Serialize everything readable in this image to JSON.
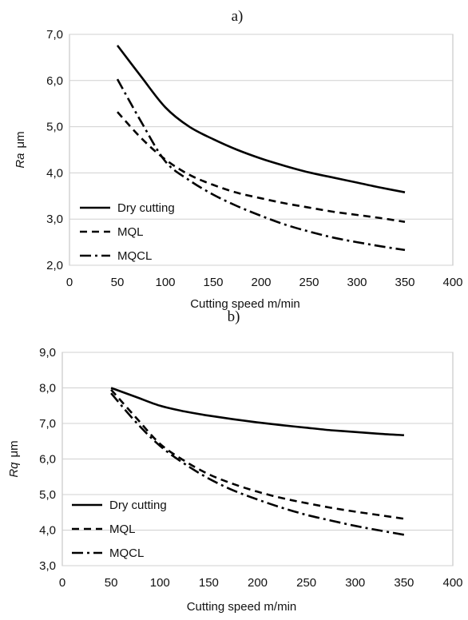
{
  "chart_data": [
    {
      "type": "line",
      "panel_label": "a)",
      "xlabel": "Cutting speed  m/min",
      "ylabel_symbol": "Ra",
      "ylabel_unit": "μm",
      "xlim": [
        0,
        400
      ],
      "ylim": [
        2.0,
        7.0
      ],
      "xticks": [
        0,
        50,
        100,
        150,
        200,
        250,
        300,
        350,
        400
      ],
      "yticks": [
        2.0,
        3.0,
        4.0,
        5.0,
        6.0,
        7.0
      ],
      "ytick_labels": [
        "2,0",
        "3,0",
        "4,0",
        "5,0",
        "6,0",
        "7,0"
      ],
      "grid": "horizontal",
      "legend_position": "bottom-left",
      "x": [
        50,
        75,
        100,
        125,
        150,
        175,
        200,
        225,
        250,
        275,
        300,
        325,
        350
      ],
      "series": [
        {
          "name": "Dry cutting",
          "dash": "solid",
          "values": [
            6.76,
            6.08,
            5.42,
            5.0,
            4.73,
            4.5,
            4.31,
            4.15,
            4.01,
            3.9,
            3.79,
            3.68,
            3.58
          ]
        },
        {
          "name": "MQL",
          "dash": "dashed",
          "values": [
            5.32,
            4.75,
            4.29,
            3.96,
            3.74,
            3.57,
            3.45,
            3.34,
            3.25,
            3.16,
            3.09,
            3.02,
            2.94
          ]
        },
        {
          "name": "MQCL",
          "dash": "dashdot",
          "values": [
            6.03,
            5.1,
            4.25,
            3.84,
            3.53,
            3.28,
            3.07,
            2.88,
            2.73,
            2.6,
            2.5,
            2.41,
            2.33
          ]
        }
      ]
    },
    {
      "type": "line",
      "panel_label": "b)",
      "xlabel": "Cutting speed  m/min",
      "ylabel_symbol": "Rq",
      "ylabel_unit": "μm",
      "xlim": [
        0,
        400
      ],
      "ylim": [
        3.0,
        9.0
      ],
      "xticks": [
        0,
        50,
        100,
        150,
        200,
        250,
        300,
        350,
        400
      ],
      "yticks": [
        3.0,
        4.0,
        5.0,
        6.0,
        7.0,
        8.0,
        9.0
      ],
      "ytick_labels": [
        "3,0",
        "4,0",
        "5,0",
        "6,0",
        "7,0",
        "8,0",
        "9,0"
      ],
      "grid": "horizontal",
      "legend_position": "bottom-left",
      "x": [
        50,
        75,
        100,
        125,
        150,
        175,
        200,
        225,
        250,
        275,
        300,
        325,
        350
      ],
      "series": [
        {
          "name": "Dry cutting",
          "dash": "solid",
          "values": [
            8.0,
            7.75,
            7.5,
            7.34,
            7.22,
            7.12,
            7.03,
            6.95,
            6.88,
            6.81,
            6.76,
            6.71,
            6.67
          ]
        },
        {
          "name": "MQL",
          "dash": "dashed",
          "values": [
            7.95,
            7.18,
            6.43,
            5.95,
            5.57,
            5.3,
            5.08,
            4.9,
            4.76,
            4.63,
            4.52,
            4.42,
            4.32
          ]
        },
        {
          "name": "MQCL",
          "dash": "dashdot",
          "values": [
            7.85,
            7.05,
            6.37,
            5.87,
            5.45,
            5.12,
            4.86,
            4.63,
            4.43,
            4.27,
            4.12,
            3.99,
            3.87
          ]
        }
      ]
    }
  ]
}
